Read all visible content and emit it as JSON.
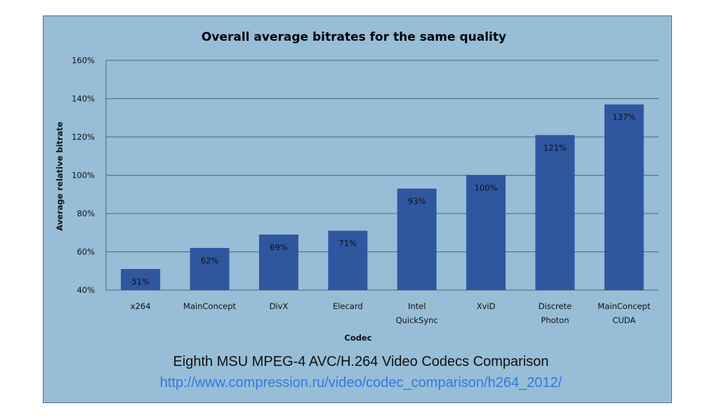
{
  "chart_data": {
    "type": "bar",
    "title": "Overall average bitrates for the same quality",
    "xlabel": "Codec",
    "ylabel": "Average relative bitrate",
    "ylim": [
      40,
      160
    ],
    "yticks": [
      "40%",
      "60%",
      "80%",
      "100%",
      "120%",
      "140%",
      "160%"
    ],
    "ytick_values": [
      40,
      60,
      80,
      100,
      120,
      140,
      160
    ],
    "grid": true,
    "categories": [
      [
        "x264"
      ],
      [
        "MainConcept"
      ],
      [
        "DivX"
      ],
      [
        "Elecard"
      ],
      [
        "Intel",
        "QuickSync"
      ],
      [
        "XviD"
      ],
      [
        "Discrete",
        "Photon"
      ],
      [
        "MainConcept",
        "CUDA"
      ]
    ],
    "values": [
      51,
      62,
      69,
      71,
      93,
      100,
      121,
      137
    ],
    "data_labels": [
      "51%",
      "62%",
      "69%",
      "71%",
      "93%",
      "100%",
      "121%",
      "137%"
    ],
    "bar_color": "#2f57a0",
    "background_color": "#97bdd7"
  },
  "footer": {
    "caption": "Eighth MSU MPEG-4 AVC/H.264 Video Codecs Comparison",
    "url": "http://www.compression.ru/video/codec_comparison/h264_2012/"
  }
}
